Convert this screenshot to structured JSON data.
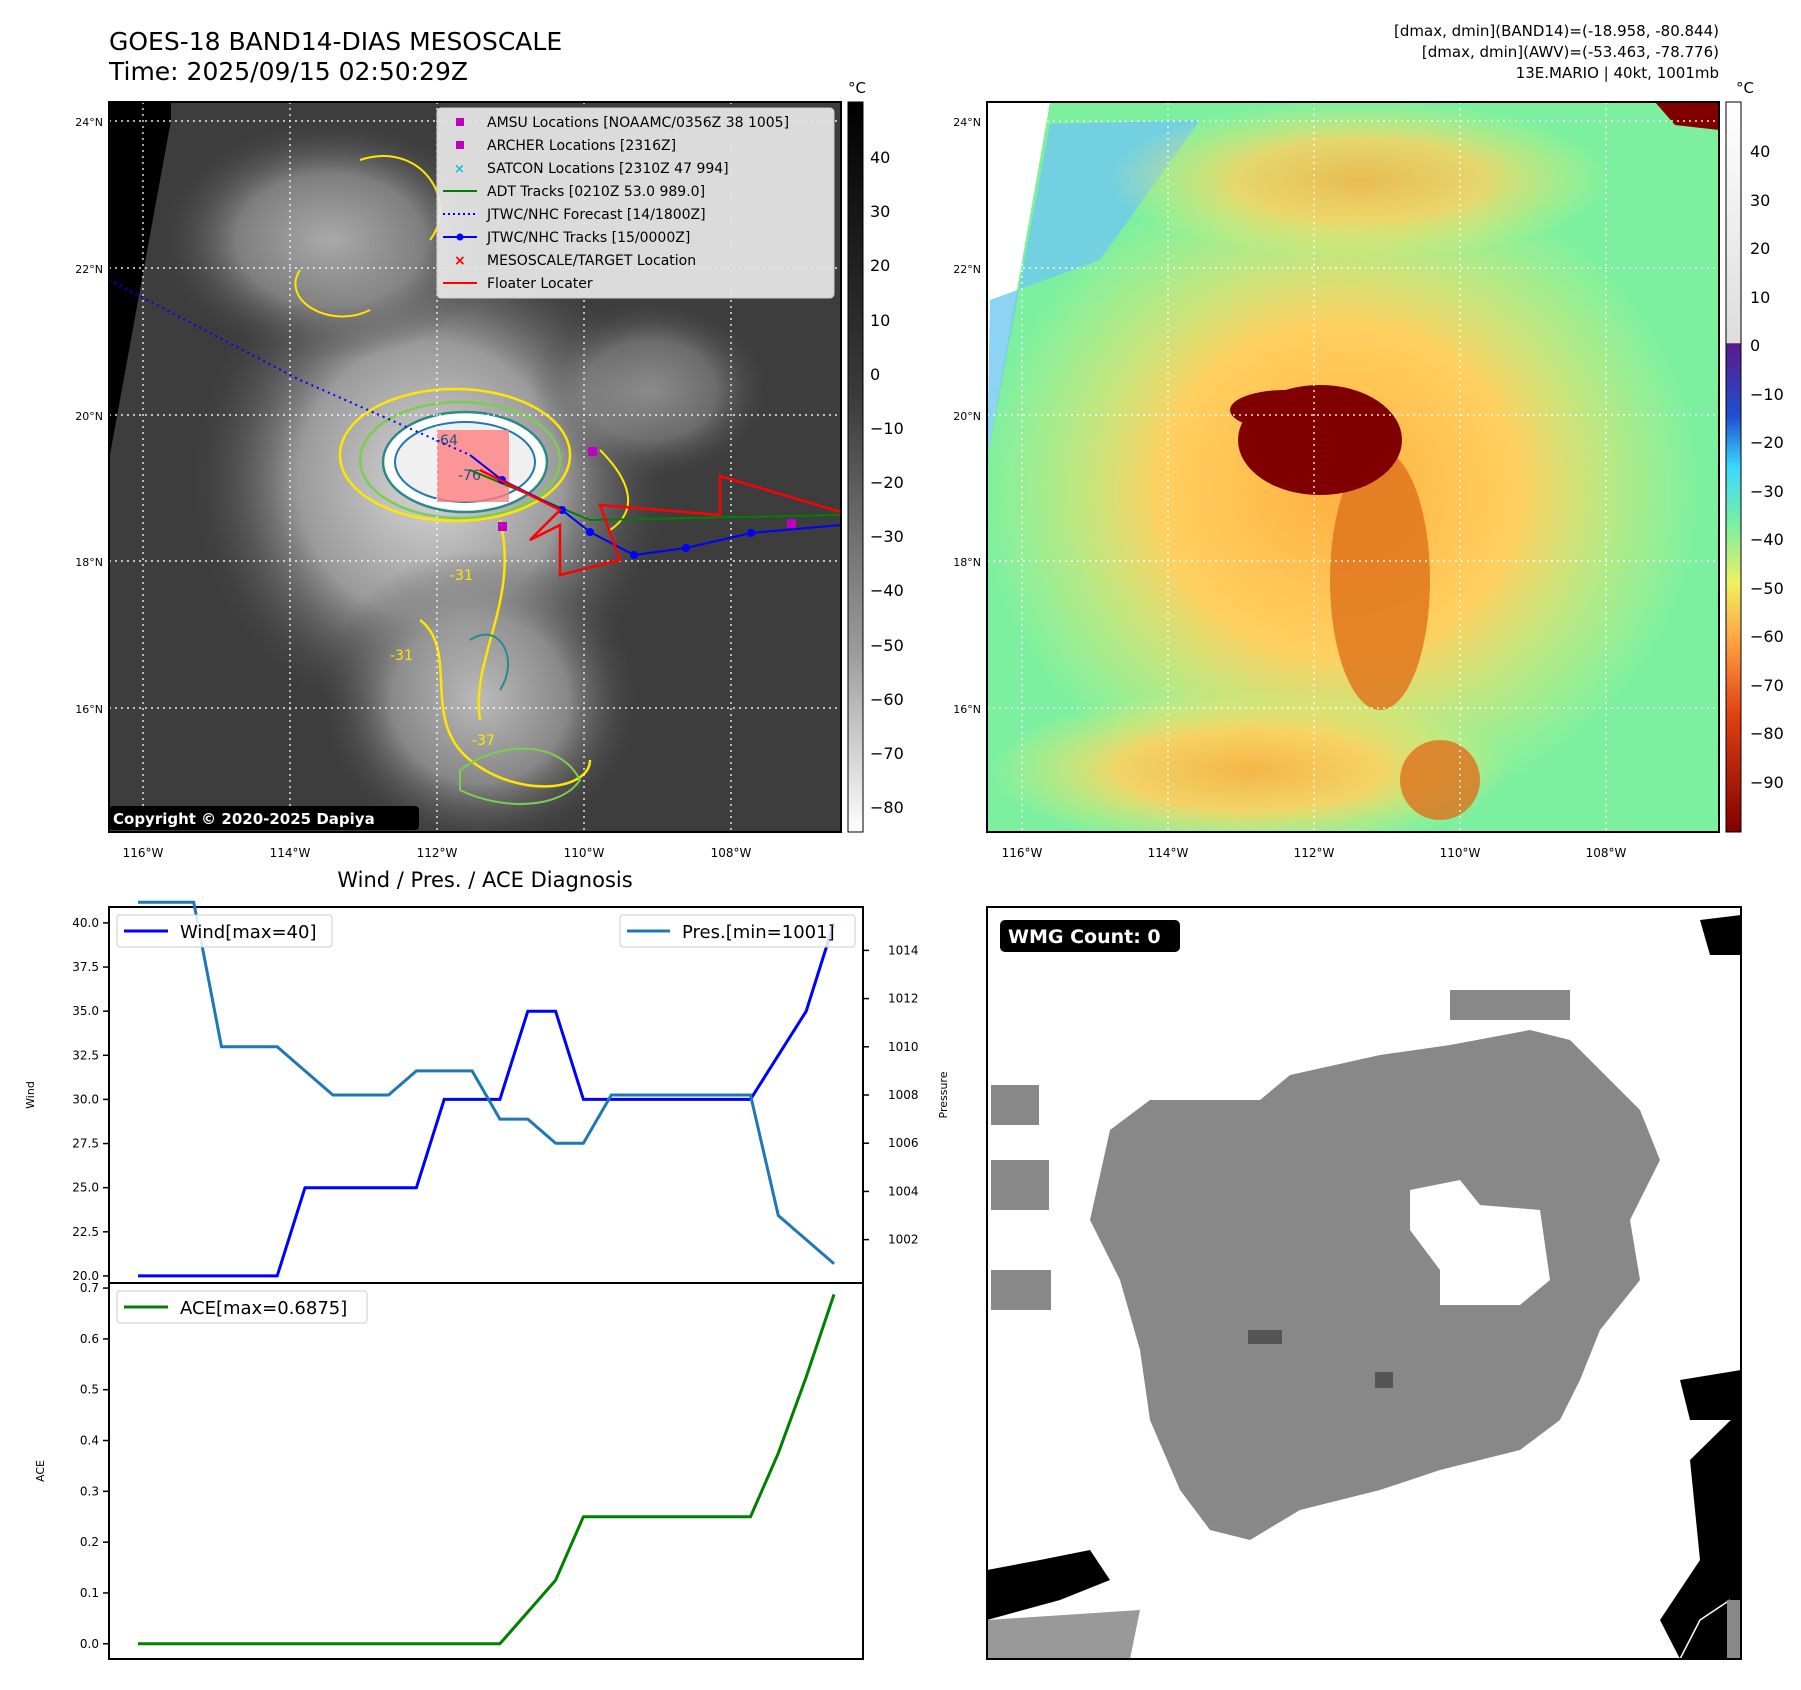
{
  "header": {
    "title_line1": "GOES-18 BAND14-DIAS MESOSCALE",
    "title_line2": "Time: 2025/09/15 02:50:29Z",
    "info_line1": "[dmax, dmin](BAND14)=(-18.958, -80.844)",
    "info_line2": "[dmax, dmin](AWV)=(-53.463, -78.776)",
    "info_line3": "13E.MARIO | 40kt, 1001mb"
  },
  "map_left": {
    "lat_labels": [
      "24°N",
      "22°N",
      "20°N",
      "18°N",
      "16°N"
    ],
    "lon_labels": [
      "116°W",
      "114°W",
      "112°W",
      "110°W",
      "108°W"
    ],
    "colorbar_unit": "°C",
    "colorbar_ticks": [
      "40",
      "30",
      "20",
      "10",
      "0",
      "−10",
      "−20",
      "−30",
      "−40",
      "−50",
      "−60",
      "−70",
      "−80"
    ],
    "copyright": "Copyright © 2020-2025 Dapiya",
    "contour_labels": [
      "-64",
      "-76",
      "-31",
      "-31",
      "-37"
    ],
    "legend": [
      {
        "label": "AMSU Locations [NOAAMC/0356Z 38 1005]",
        "symbol": "square",
        "color": "#c000c0"
      },
      {
        "label": "ARCHER Locations [2316Z]",
        "symbol": "square",
        "color": "#c000c0"
      },
      {
        "label": "SATCON Locations [2310Z 47 994]",
        "symbol": "x",
        "color": "#17becf"
      },
      {
        "label": "ADT Tracks [0210Z 53.0 989.0]",
        "symbol": "line",
        "color": "#008000"
      },
      {
        "label": "JTWC/NHC Forecast [14/1800Z]",
        "symbol": "dotted",
        "color": "#0000ff"
      },
      {
        "label": "JTWC/NHC Tracks [15/0000Z]",
        "symbol": "line-dot",
        "color": "#0000ff"
      },
      {
        "label": "MESOSCALE/TARGET Location",
        "symbol": "x",
        "color": "#ff0000"
      },
      {
        "label": "Floater Locater",
        "symbol": "line",
        "color": "#ff0000"
      }
    ]
  },
  "map_right": {
    "lat_labels": [
      "24°N",
      "22°N",
      "20°N",
      "18°N",
      "16°N"
    ],
    "lon_labels": [
      "116°W",
      "114°W",
      "112°W",
      "110°W",
      "108°W"
    ],
    "colorbar_unit": "°C",
    "colorbar_ticks": [
      "40",
      "30",
      "20",
      "10",
      "0",
      "−10",
      "−20",
      "−30",
      "−40",
      "−50",
      "−60",
      "−70",
      "−80",
      "−90"
    ]
  },
  "wmg": {
    "badge": "WMG Count: 0"
  },
  "chart_data": [
    {
      "type": "line",
      "title": "Wind / Pres. / ACE Diagnosis",
      "ylabel": "Wind",
      "ylim": [
        19.6,
        40.9
      ],
      "yticks": [
        "20.0",
        "22.5",
        "25.0",
        "27.5",
        "30.0",
        "32.5",
        "35.0",
        "37.5",
        "40.0"
      ],
      "x": [
        0,
        1,
        2,
        3,
        4,
        5,
        6,
        7,
        8,
        9,
        10,
        11,
        12,
        13,
        14,
        15,
        16,
        17,
        18,
        19,
        20,
        21,
        22,
        23,
        24,
        25
      ],
      "series": [
        {
          "name": "Wind[max=40]",
          "color": "#0000ff",
          "values": [
            20,
            20,
            20,
            20,
            20,
            20,
            25,
            25,
            25,
            25,
            25,
            30,
            30,
            30,
            35,
            35,
            30,
            30,
            30,
            30,
            30,
            30,
            30,
            32.5,
            35,
            40
          ]
        }
      ]
    },
    {
      "type": "line",
      "ylabel": "Pressure",
      "ylim": [
        1000.2,
        1015.8
      ],
      "yticks": [
        "1002",
        "1004",
        "1006",
        "1008",
        "1010",
        "1012",
        "1014"
      ],
      "x": [
        0,
        1,
        2,
        3,
        4,
        5,
        6,
        7,
        8,
        9,
        10,
        11,
        12,
        13,
        14,
        15,
        16,
        17,
        18,
        19,
        20,
        21,
        22,
        23,
        24,
        25
      ],
      "series": [
        {
          "name": "Pres.[min=1001]",
          "color": "#1f77b4",
          "values": [
            1016,
            1016,
            1016,
            1010,
            1010,
            1010,
            1009,
            1008,
            1008,
            1008,
            1009,
            1009,
            1009,
            1007,
            1007,
            1006,
            1006,
            1008,
            1008,
            1008,
            1008,
            1008,
            1008,
            1003,
            1002,
            1001
          ]
        }
      ]
    },
    {
      "type": "line",
      "ylabel": "ACE",
      "ylim": [
        -0.03,
        0.71
      ],
      "yticks": [
        "0.0",
        "0.1",
        "0.2",
        "0.3",
        "0.4",
        "0.5",
        "0.6",
        "0.7"
      ],
      "x": [
        0,
        1,
        2,
        3,
        4,
        5,
        6,
        7,
        8,
        9,
        10,
        11,
        12,
        13,
        14,
        15,
        16,
        17,
        18,
        19,
        20,
        21,
        22,
        23,
        24,
        25
      ],
      "series": [
        {
          "name": "ACE[max=0.6875]",
          "color": "#008000",
          "values": [
            0,
            0,
            0,
            0,
            0,
            0,
            0,
            0,
            0,
            0,
            0,
            0,
            0,
            0,
            0.0625,
            0.125,
            0.25,
            0.25,
            0.25,
            0.25,
            0.25,
            0.25,
            0.25,
            0.375,
            0.525,
            0.6875
          ]
        }
      ]
    }
  ]
}
